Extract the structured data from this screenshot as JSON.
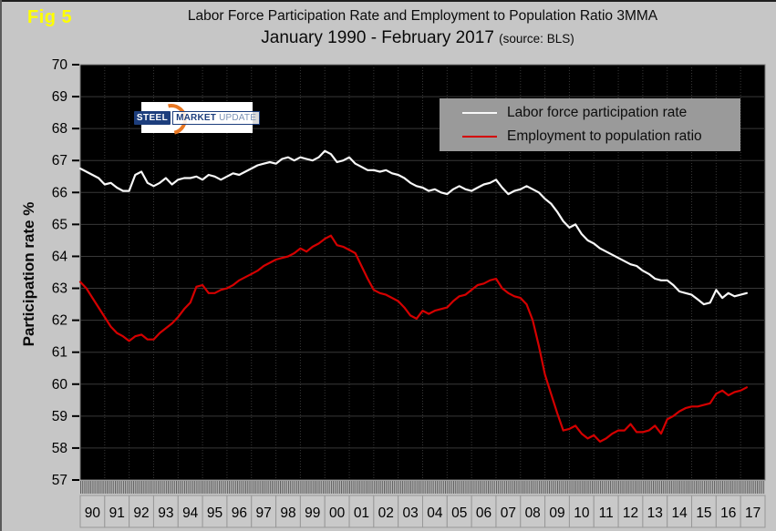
{
  "figure": {
    "fig_label": "Fig 5",
    "title_line1": "Labor Force Participation Rate and Employment to Population Ratio 3MMA",
    "title_line2": "January 1990 - February 2017",
    "title_source": "(source: BLS)"
  },
  "logo": {
    "word1": "STEEL",
    "word2": "MARKET",
    "word3": "UPDATE"
  },
  "legend": {
    "items": [
      {
        "label": "Labor force participation rate",
        "color": "#f8f8f8"
      },
      {
        "label": "Employment to population ratio",
        "color": "#d40000"
      }
    ]
  },
  "colors": {
    "page_bg": "#c6c6c6",
    "plot_bg": "#000000",
    "grid": "#383838",
    "fig_label": "#ffff00",
    "tick_text": "#000000",
    "legend_bg": "#9a9a9a"
  },
  "chart_data": {
    "type": "line",
    "title": "Labor Force Participation Rate and Employment to Population Ratio 3MMA",
    "subtitle": "January 1990 - February 2017 (source: BLS)",
    "xlabel": "",
    "ylabel": "Participation rate %",
    "ylim": [
      57,
      70
    ],
    "ytick_step": 1,
    "yticks": [
      70,
      69,
      68,
      67,
      66,
      65,
      64,
      63,
      62,
      61,
      60,
      59,
      58,
      57
    ],
    "x_range_years": [
      1990,
      2018
    ],
    "x_year_labels": [
      "90",
      "91",
      "92",
      "93",
      "94",
      "95",
      "96",
      "97",
      "98",
      "99",
      "00",
      "01",
      "02",
      "03",
      "04",
      "05",
      "06",
      "07",
      "08",
      "09",
      "10",
      "11",
      "12",
      "13",
      "14",
      "15",
      "16",
      "17"
    ],
    "x_start": 1990.0,
    "x_step": 0.25,
    "grid": true,
    "legend_position": "top-right",
    "series": [
      {
        "name": "Labor force participation rate",
        "color": "#f8f8f8",
        "values": [
          66.75,
          66.65,
          66.55,
          66.45,
          66.25,
          66.3,
          66.15,
          66.05,
          66.05,
          66.55,
          66.65,
          66.3,
          66.2,
          66.3,
          66.45,
          66.25,
          66.4,
          66.45,
          66.45,
          66.5,
          66.4,
          66.55,
          66.5,
          66.4,
          66.5,
          66.6,
          66.55,
          66.65,
          66.75,
          66.85,
          66.9,
          66.95,
          66.9,
          67.05,
          67.1,
          67.0,
          67.1,
          67.05,
          67.0,
          67.1,
          67.3,
          67.2,
          66.95,
          67.0,
          67.1,
          66.9,
          66.8,
          66.7,
          66.7,
          66.65,
          66.7,
          66.6,
          66.55,
          66.45,
          66.3,
          66.2,
          66.15,
          66.05,
          66.1,
          66.0,
          65.95,
          66.1,
          66.2,
          66.1,
          66.05,
          66.15,
          66.25,
          66.3,
          66.4,
          66.15,
          65.95,
          66.05,
          66.1,
          66.2,
          66.1,
          66.0,
          65.8,
          65.65,
          65.4,
          65.1,
          64.9,
          65.0,
          64.7,
          64.5,
          64.4,
          64.25,
          64.15,
          64.05,
          63.95,
          63.85,
          63.75,
          63.7,
          63.55,
          63.45,
          63.3,
          63.25,
          63.25,
          63.1,
          62.9,
          62.85,
          62.8,
          62.65,
          62.5,
          62.55,
          62.95,
          62.7,
          62.85,
          62.75,
          62.8,
          62.85
        ]
      },
      {
        "name": "Employment to population ratio",
        "color": "#d40000",
        "values": [
          63.2,
          63.0,
          62.7,
          62.4,
          62.1,
          61.8,
          61.6,
          61.5,
          61.35,
          61.5,
          61.55,
          61.4,
          61.4,
          61.6,
          61.75,
          61.9,
          62.1,
          62.35,
          62.55,
          63.05,
          63.1,
          62.85,
          62.85,
          62.95,
          63.0,
          63.1,
          63.25,
          63.35,
          63.45,
          63.55,
          63.7,
          63.8,
          63.9,
          63.95,
          64.0,
          64.1,
          64.25,
          64.15,
          64.3,
          64.4,
          64.55,
          64.65,
          64.35,
          64.3,
          64.2,
          64.1,
          63.7,
          63.3,
          62.95,
          62.85,
          62.8,
          62.7,
          62.6,
          62.4,
          62.15,
          62.05,
          62.3,
          62.2,
          62.3,
          62.35,
          62.4,
          62.6,
          62.75,
          62.8,
          62.95,
          63.1,
          63.15,
          63.25,
          63.3,
          63.0,
          62.85,
          62.75,
          62.7,
          62.5,
          62.0,
          61.2,
          60.3,
          59.7,
          59.1,
          58.55,
          58.6,
          58.7,
          58.45,
          58.3,
          58.4,
          58.2,
          58.3,
          58.45,
          58.55,
          58.55,
          58.75,
          58.5,
          58.5,
          58.55,
          58.7,
          58.45,
          58.9,
          59.0,
          59.15,
          59.25,
          59.3,
          59.3,
          59.35,
          59.4,
          59.7,
          59.8,
          59.65,
          59.75,
          59.8,
          59.9
        ]
      }
    ]
  }
}
